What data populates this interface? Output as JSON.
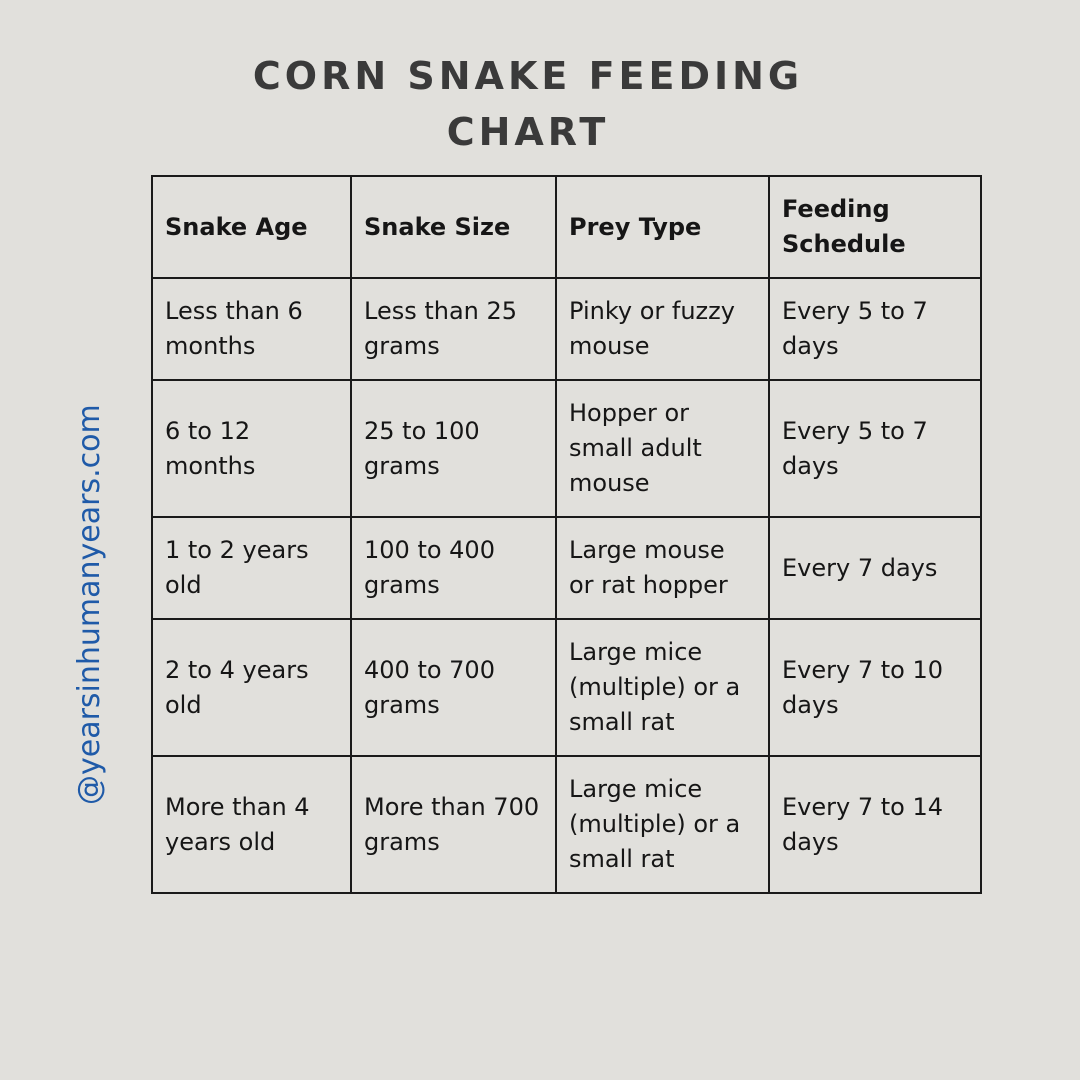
{
  "title": {
    "line1": "CORN SNAKE FEEDING",
    "line2": "CHART"
  },
  "watermark": "@yearsinhumanyears.com",
  "table": {
    "headers": [
      "Snake Age",
      "Snake Size",
      "Prey Type",
      "Feeding Schedule"
    ],
    "rows": [
      [
        "Less than 6 months",
        "Less than 25 grams",
        "Pinky or fuzzy mouse",
        "Every 5 to 7 days"
      ],
      [
        "6 to 12 months",
        "25 to 100 grams",
        "Hopper or small adult mouse",
        "Every 5 to 7 days"
      ],
      [
        "1 to 2 years old",
        "100 to 400 grams",
        "Large mouse or rat hopper",
        "Every 7 days"
      ],
      [
        "2 to 4 years old",
        "400 to 700 grams",
        "Large mice (multiple) or a small rat",
        "Every 7 to 10 days"
      ],
      [
        "More than 4 years old",
        "More than 700 grams",
        "Large mice (multiple) or a small rat",
        "Every 7 to 14 days"
      ]
    ]
  },
  "colors": {
    "background": "#e1e0dc",
    "title": "#3a3a3a",
    "watermark": "#1f5aa8",
    "border": "#1a1a1a"
  }
}
